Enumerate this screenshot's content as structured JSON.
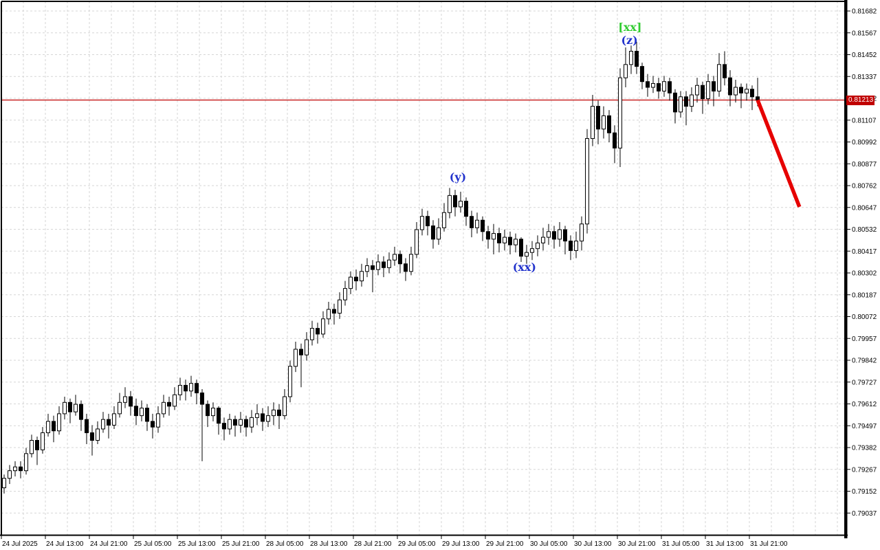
{
  "chart_data": {
    "type": "candlestick",
    "title": "",
    "xlabel": "",
    "ylabel": "",
    "grid": {
      "on": true,
      "color": "#d6d6d6"
    },
    "legend_position": "none",
    "ylim": [
      0.7892,
      0.81733
    ],
    "bull_color": "#ffffff",
    "bear_color": "#000000",
    "outline_color": "#000000",
    "time_labels": [
      "24 Jul 2025",
      "24 Jul 13:00",
      "24 Jul 21:00",
      "25 Jul 05:00",
      "25 Jul 13:00",
      "25 Jul 21:00",
      "28 Jul 05:00",
      "28 Jul 13:00",
      "28 Jul 21:00",
      "29 Jul 05:00",
      "29 Jul 13:00",
      "29 Jul 21:00",
      "30 Jul 05:00",
      "30 Jul 13:00",
      "30 Jul 21:00",
      "31 Jul 05:00",
      "31 Jul 13:00",
      "31 Jul 21:00"
    ],
    "price_ticks": [
      "0.81682",
      "0.81567",
      "0.81452",
      "0.81337",
      "0.81222",
      "0.81107",
      "0.80992",
      "0.80877",
      "0.80762",
      "0.80647",
      "0.80532",
      "0.80417",
      "0.80302",
      "0.80187",
      "0.80072",
      "0.79957",
      "0.79842",
      "0.79727",
      "0.79612",
      "0.79497",
      "0.79382",
      "0.79267",
      "0.79152",
      "0.79037"
    ],
    "price_line": {
      "price": 0.81213,
      "label": "0.81213",
      "color": "#c00000"
    },
    "trend_line": {
      "from_index": 137,
      "from_price": 0.81213,
      "to_index": 144.6,
      "to_price": 0.8065,
      "color": "#e60000",
      "width": 5.5
    },
    "annotations": [
      {
        "text": "[xx]",
        "color": "#33cc33",
        "index": 113.8,
        "price": 0.81595
      },
      {
        "text": "(z)",
        "color": "#2233cc",
        "index": 113.7,
        "price": 0.81526
      },
      {
        "text": "(y)",
        "color": "#2233cc",
        "index": 82.5,
        "price": 0.80805
      },
      {
        "text": "(xx)",
        "color": "#2233cc",
        "index": 94.6,
        "price": 0.80331
      }
    ],
    "candles": [
      [
        0.7917,
        0.7924,
        0.7914,
        0.7922
      ],
      [
        0.7922,
        0.7929,
        0.7919,
        0.7926
      ],
      [
        0.7926,
        0.7931,
        0.7923,
        0.7928
      ],
      [
        0.7928,
        0.7931,
        0.7922,
        0.7926
      ],
      [
        0.7926,
        0.7938,
        0.7924,
        0.7935
      ],
      [
        0.7935,
        0.7945,
        0.7933,
        0.7942
      ],
      [
        0.7942,
        0.7944,
        0.7929,
        0.7937
      ],
      [
        0.7937,
        0.7949,
        0.7935,
        0.7946
      ],
      [
        0.7946,
        0.7956,
        0.7944,
        0.7952
      ],
      [
        0.7952,
        0.7955,
        0.7941,
        0.7947
      ],
      [
        0.7947,
        0.796,
        0.7945,
        0.7956
      ],
      [
        0.7956,
        0.7965,
        0.7953,
        0.7962
      ],
      [
        0.7962,
        0.7964,
        0.7951,
        0.7957
      ],
      [
        0.7957,
        0.7966,
        0.7955,
        0.7961
      ],
      [
        0.7961,
        0.7963,
        0.7947,
        0.7953
      ],
      [
        0.7953,
        0.7956,
        0.794,
        0.7946
      ],
      [
        0.7946,
        0.795,
        0.7934,
        0.7942
      ],
      [
        0.7942,
        0.7952,
        0.794,
        0.7948
      ],
      [
        0.7948,
        0.7957,
        0.7946,
        0.7953
      ],
      [
        0.7953,
        0.7956,
        0.7943,
        0.795
      ],
      [
        0.795,
        0.796,
        0.7948,
        0.7956
      ],
      [
        0.7956,
        0.7967,
        0.7954,
        0.7962
      ],
      [
        0.7962,
        0.797,
        0.7959,
        0.7965
      ],
      [
        0.7965,
        0.7968,
        0.7955,
        0.796
      ],
      [
        0.796,
        0.7964,
        0.795,
        0.7955
      ],
      [
        0.7955,
        0.7963,
        0.7952,
        0.7959
      ],
      [
        0.7959,
        0.7961,
        0.7947,
        0.7952
      ],
      [
        0.7952,
        0.7956,
        0.7943,
        0.7949
      ],
      [
        0.7949,
        0.796,
        0.7946,
        0.7956
      ],
      [
        0.7956,
        0.7966,
        0.7954,
        0.7962
      ],
      [
        0.7962,
        0.7965,
        0.7955,
        0.796
      ],
      [
        0.796,
        0.797,
        0.7958,
        0.7966
      ],
      [
        0.7966,
        0.7975,
        0.7963,
        0.7971
      ],
      [
        0.7971,
        0.7974,
        0.7963,
        0.7968
      ],
      [
        0.7968,
        0.7976,
        0.7965,
        0.7972
      ],
      [
        0.7972,
        0.7974,
        0.7961,
        0.7967
      ],
      [
        0.7967,
        0.7969,
        0.7931,
        0.7961
      ],
      [
        0.7961,
        0.7963,
        0.7949,
        0.7955
      ],
      [
        0.7955,
        0.7962,
        0.7952,
        0.7959
      ],
      [
        0.7959,
        0.796,
        0.7945,
        0.7951
      ],
      [
        0.7951,
        0.7954,
        0.7942,
        0.7948
      ],
      [
        0.7948,
        0.7956,
        0.7945,
        0.7953
      ],
      [
        0.7953,
        0.7955,
        0.7944,
        0.795
      ],
      [
        0.795,
        0.7957,
        0.7946,
        0.7953
      ],
      [
        0.7953,
        0.7955,
        0.7944,
        0.7949
      ],
      [
        0.7949,
        0.7958,
        0.7946,
        0.7954
      ],
      [
        0.7954,
        0.7961,
        0.795,
        0.7956
      ],
      [
        0.7956,
        0.7959,
        0.7947,
        0.7952
      ],
      [
        0.7952,
        0.796,
        0.7949,
        0.7955
      ],
      [
        0.7955,
        0.7962,
        0.795,
        0.7958
      ],
      [
        0.7958,
        0.7961,
        0.7948,
        0.7955
      ],
      [
        0.7955,
        0.7969,
        0.7953,
        0.7965
      ],
      [
        0.7965,
        0.7984,
        0.7962,
        0.7981
      ],
      [
        0.7981,
        0.7994,
        0.7978,
        0.799
      ],
      [
        0.799,
        0.7993,
        0.797,
        0.7987
      ],
      [
        0.7987,
        0.7999,
        0.7984,
        0.7995
      ],
      [
        0.7995,
        0.8005,
        0.7992,
        0.8001
      ],
      [
        0.8001,
        0.8004,
        0.7993,
        0.7998
      ],
      [
        0.7998,
        0.801,
        0.7996,
        0.8006
      ],
      [
        0.8006,
        0.8015,
        0.8003,
        0.8011
      ],
      [
        0.8011,
        0.8014,
        0.8003,
        0.8009
      ],
      [
        0.8009,
        0.802,
        0.8006,
        0.8016
      ],
      [
        0.8016,
        0.8026,
        0.8013,
        0.8022
      ],
      [
        0.8022,
        0.8031,
        0.8019,
        0.8028
      ],
      [
        0.8028,
        0.8032,
        0.8021,
        0.8026
      ],
      [
        0.8026,
        0.8035,
        0.8023,
        0.8031
      ],
      [
        0.8031,
        0.8038,
        0.8028,
        0.8034
      ],
      [
        0.8034,
        0.8037,
        0.802,
        0.8032
      ],
      [
        0.8032,
        0.804,
        0.8029,
        0.8036
      ],
      [
        0.8036,
        0.8039,
        0.8028,
        0.8033
      ],
      [
        0.8033,
        0.8041,
        0.803,
        0.8037
      ],
      [
        0.8037,
        0.8044,
        0.8034,
        0.804
      ],
      [
        0.804,
        0.8042,
        0.803,
        0.8035
      ],
      [
        0.8035,
        0.8038,
        0.8026,
        0.8031
      ],
      [
        0.8031,
        0.8044,
        0.8029,
        0.804
      ],
      [
        0.804,
        0.8057,
        0.8038,
        0.8053
      ],
      [
        0.8053,
        0.8064,
        0.805,
        0.806
      ],
      [
        0.806,
        0.8063,
        0.805,
        0.8055
      ],
      [
        0.8055,
        0.8058,
        0.8043,
        0.8048
      ],
      [
        0.8048,
        0.8059,
        0.8045,
        0.8054
      ],
      [
        0.8054,
        0.8067,
        0.8052,
        0.8062
      ],
      [
        0.8062,
        0.8075,
        0.8059,
        0.8071
      ],
      [
        0.8071,
        0.8074,
        0.806,
        0.8065
      ],
      [
        0.8065,
        0.8073,
        0.8062,
        0.8068
      ],
      [
        0.8068,
        0.807,
        0.8055,
        0.806
      ],
      [
        0.806,
        0.8063,
        0.8049,
        0.8054
      ],
      [
        0.8054,
        0.8062,
        0.8051,
        0.8058
      ],
      [
        0.8058,
        0.806,
        0.8047,
        0.8052
      ],
      [
        0.8052,
        0.8055,
        0.8043,
        0.8048
      ],
      [
        0.8048,
        0.8056,
        0.804,
        0.8051
      ],
      [
        0.8051,
        0.8054,
        0.8041,
        0.8046
      ],
      [
        0.8046,
        0.8053,
        0.8042,
        0.8049
      ],
      [
        0.8049,
        0.8052,
        0.804,
        0.8045
      ],
      [
        0.8045,
        0.8051,
        0.8041,
        0.8048
      ],
      [
        0.8048,
        0.8049,
        0.8036,
        0.8039
      ],
      [
        0.8039,
        0.8045,
        0.8035,
        0.8041
      ],
      [
        0.8041,
        0.8047,
        0.8037,
        0.8043
      ],
      [
        0.8043,
        0.805,
        0.8039,
        0.8046
      ],
      [
        0.8046,
        0.8054,
        0.8042,
        0.8049
      ],
      [
        0.8049,
        0.8056,
        0.8045,
        0.8052
      ],
      [
        0.8052,
        0.8055,
        0.8043,
        0.8048
      ],
      [
        0.8048,
        0.8057,
        0.8044,
        0.8053
      ],
      [
        0.8053,
        0.8055,
        0.804,
        0.8047
      ],
      [
        0.8047,
        0.805,
        0.8037,
        0.8042
      ],
      [
        0.8042,
        0.8052,
        0.8038,
        0.8047
      ],
      [
        0.8047,
        0.806,
        0.8042,
        0.8056
      ],
      [
        0.8056,
        0.8106,
        0.8051,
        0.8101
      ],
      [
        0.8101,
        0.8124,
        0.8097,
        0.8118
      ],
      [
        0.8118,
        0.8121,
        0.8098,
        0.8106
      ],
      [
        0.8106,
        0.8118,
        0.8101,
        0.8113
      ],
      [
        0.8113,
        0.8116,
        0.8099,
        0.8104
      ],
      [
        0.8104,
        0.8108,
        0.8088,
        0.8096
      ],
      [
        0.8096,
        0.8138,
        0.8086,
        0.8133
      ],
      [
        0.8133,
        0.8149,
        0.8128,
        0.814
      ],
      [
        0.814,
        0.815,
        0.8135,
        0.8147
      ],
      [
        0.8147,
        0.8152,
        0.8135,
        0.8139
      ],
      [
        0.8139,
        0.8141,
        0.8127,
        0.8131
      ],
      [
        0.8131,
        0.8135,
        0.8123,
        0.8128
      ],
      [
        0.8128,
        0.8134,
        0.8125,
        0.813
      ],
      [
        0.813,
        0.8133,
        0.8122,
        0.8126
      ],
      [
        0.8126,
        0.8134,
        0.8123,
        0.8131
      ],
      [
        0.8131,
        0.8133,
        0.8121,
        0.8125
      ],
      [
        0.8125,
        0.8127,
        0.8109,
        0.8115
      ],
      [
        0.8115,
        0.8126,
        0.8112,
        0.8123
      ],
      [
        0.8123,
        0.8126,
        0.8108,
        0.8118
      ],
      [
        0.8118,
        0.8128,
        0.8115,
        0.8124
      ],
      [
        0.8124,
        0.8133,
        0.812,
        0.8129
      ],
      [
        0.8129,
        0.8131,
        0.8114,
        0.8122
      ],
      [
        0.8122,
        0.8135,
        0.8119,
        0.8131
      ],
      [
        0.8131,
        0.8134,
        0.8118,
        0.8126
      ],
      [
        0.8126,
        0.8146,
        0.8123,
        0.814
      ],
      [
        0.814,
        0.8147,
        0.8129,
        0.8133
      ],
      [
        0.8133,
        0.8137,
        0.8118,
        0.8124
      ],
      [
        0.8124,
        0.8132,
        0.812,
        0.8128
      ],
      [
        0.8128,
        0.813,
        0.8117,
        0.8125
      ],
      [
        0.8125,
        0.813,
        0.8121,
        0.8127
      ],
      [
        0.8127,
        0.8129,
        0.8116,
        0.8123
      ],
      [
        0.8123,
        0.8133,
        0.8118,
        0.81213
      ]
    ]
  }
}
